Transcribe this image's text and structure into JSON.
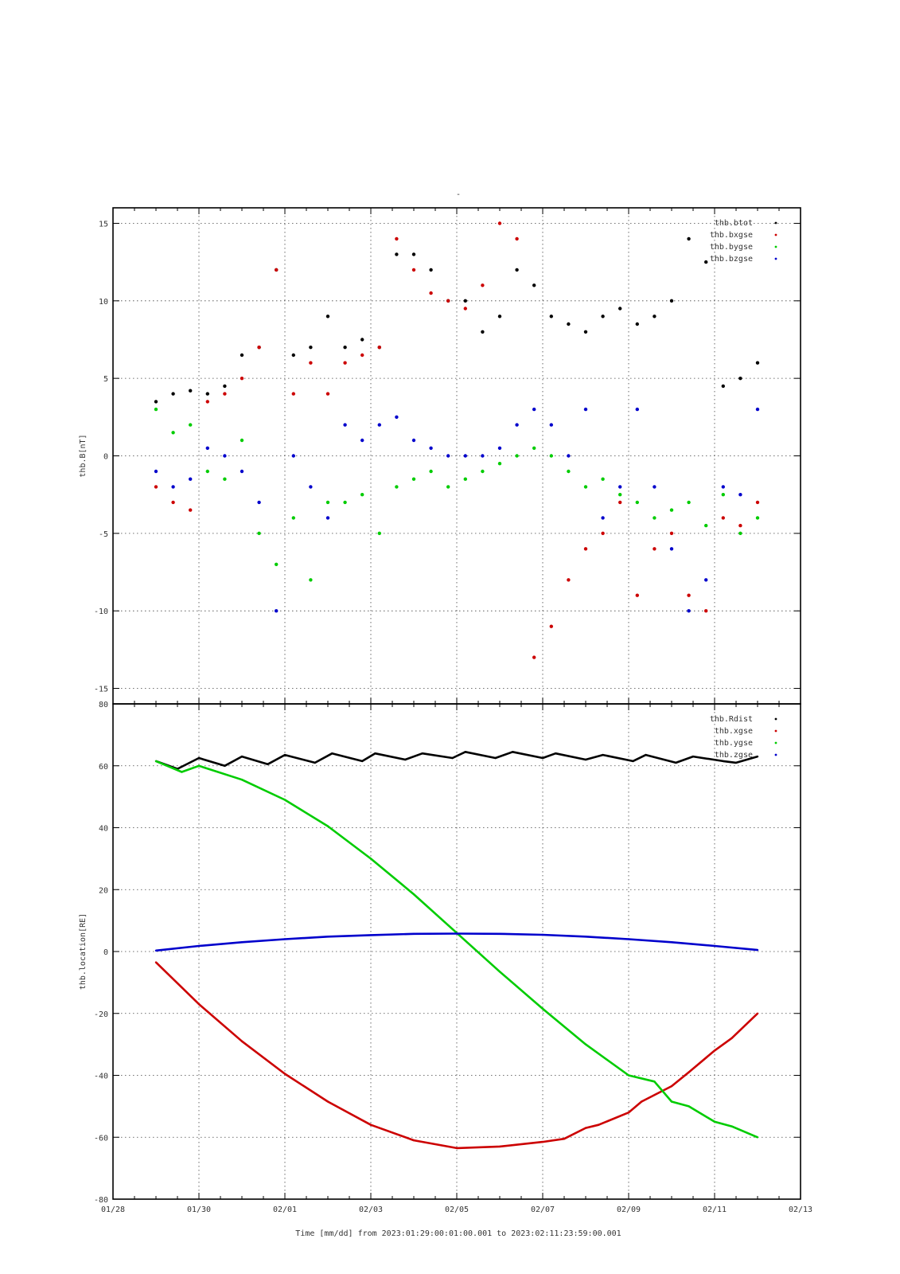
{
  "page_title": "-",
  "x_axis": {
    "label": "Time [mm/dd]  from 2023:01:29:00:01:00.001  to  2023:02:11:23:59:00.001",
    "tick_labels": [
      "01/28",
      "01/30",
      "02/01",
      "02/03",
      "02/05",
      "02/07",
      "02/09",
      "02/11",
      "02/13"
    ]
  },
  "chart_data": [
    {
      "type": "scatter",
      "title": "",
      "xlabel": "",
      "ylabel": "thb.B[nT]",
      "xlim_days_from_0128": [
        0,
        16
      ],
      "ylim": [
        -16,
        16
      ],
      "yticks": [
        -15,
        -10,
        -5,
        0,
        5,
        10,
        15
      ],
      "grid": true,
      "legend_position": "top-right",
      "x_unit": "days since 01/28",
      "series": [
        {
          "name": "thb.btot",
          "color": "#000000",
          "x": [
            1.0,
            1.4,
            1.8,
            2.2,
            2.6,
            3.0,
            3.4,
            3.8,
            4.2,
            4.6,
            5.0,
            5.4,
            5.8,
            6.2,
            6.6,
            7.0,
            7.4,
            7.8,
            8.2,
            8.6,
            9.0,
            9.4,
            9.8,
            10.2,
            10.6,
            11.0,
            11.4,
            11.8,
            12.2,
            12.6,
            13.0,
            13.4,
            13.8,
            14.2,
            14.6,
            15.0
          ],
          "y": [
            3.5,
            4.0,
            4.2,
            4.0,
            4.5,
            6.5,
            7.0,
            12.0,
            6.5,
            7.0,
            9.0,
            7.0,
            7.5,
            7.0,
            13.0,
            13.0,
            12.0,
            10.0,
            10.0,
            8.0,
            9.0,
            12.0,
            11.0,
            9.0,
            8.5,
            8.0,
            9.0,
            9.5,
            8.5,
            9.0,
            10.0,
            14.0,
            12.5,
            4.5,
            5.0,
            6.0
          ]
        },
        {
          "name": "thb.bxgse",
          "color": "#cc0000",
          "x": [
            1.0,
            1.4,
            1.8,
            2.2,
            2.6,
            3.0,
            3.4,
            3.8,
            4.2,
            4.6,
            5.0,
            5.4,
            5.8,
            6.2,
            6.6,
            7.0,
            7.4,
            7.8,
            8.2,
            8.6,
            9.0,
            9.4,
            9.8,
            10.2,
            10.6,
            11.0,
            11.4,
            11.8,
            12.2,
            12.6,
            13.0,
            13.4,
            13.8,
            14.2,
            14.6,
            15.0
          ],
          "y": [
            -2.0,
            -3.0,
            -3.5,
            3.5,
            4.0,
            5.0,
            7.0,
            12.0,
            4.0,
            6.0,
            4.0,
            6.0,
            6.5,
            7.0,
            14.0,
            12.0,
            10.5,
            10.0,
            9.5,
            11.0,
            15.0,
            14.0,
            -13.0,
            -11.0,
            -8.0,
            -6.0,
            -5.0,
            -3.0,
            -9.0,
            -6.0,
            -5.0,
            -9.0,
            -10.0,
            -4.0,
            -4.5,
            -3.0
          ]
        },
        {
          "name": "thb.bygse",
          "color": "#00cc00",
          "x": [
            1.0,
            1.4,
            1.8,
            2.2,
            2.6,
            3.0,
            3.4,
            3.8,
            4.2,
            4.6,
            5.0,
            5.4,
            5.8,
            6.2,
            6.6,
            7.0,
            7.4,
            7.8,
            8.2,
            8.6,
            9.0,
            9.4,
            9.8,
            10.2,
            10.6,
            11.0,
            11.4,
            11.8,
            12.2,
            12.6,
            13.0,
            13.4,
            13.8,
            14.2,
            14.6,
            15.0
          ],
          "y": [
            3.0,
            1.5,
            2.0,
            -1.0,
            -1.5,
            1.0,
            -5.0,
            -7.0,
            -4.0,
            -8.0,
            -3.0,
            -3.0,
            -2.5,
            -5.0,
            -2.0,
            -1.5,
            -1.0,
            -2.0,
            -1.5,
            -1.0,
            -0.5,
            0.0,
            0.5,
            0.0,
            -1.0,
            -2.0,
            -1.5,
            -2.5,
            -3.0,
            -4.0,
            -3.5,
            -3.0,
            -4.5,
            -2.5,
            -5.0,
            -4.0
          ]
        },
        {
          "name": "thb.bzgse",
          "color": "#0000cc",
          "x": [
            1.0,
            1.4,
            1.8,
            2.2,
            2.6,
            3.0,
            3.4,
            3.8,
            4.2,
            4.6,
            5.0,
            5.4,
            5.8,
            6.2,
            6.6,
            7.0,
            7.4,
            7.8,
            8.2,
            8.6,
            9.0,
            9.4,
            9.8,
            10.2,
            10.6,
            11.0,
            11.4,
            11.8,
            12.2,
            12.6,
            13.0,
            13.4,
            13.8,
            14.2,
            14.6,
            15.0
          ],
          "y": [
            -1.0,
            -2.0,
            -1.5,
            0.5,
            0.0,
            -1.0,
            -3.0,
            -10.0,
            0.0,
            -2.0,
            -4.0,
            2.0,
            1.0,
            2.0,
            2.5,
            1.0,
            0.5,
            0.0,
            0.0,
            0.0,
            0.5,
            2.0,
            3.0,
            2.0,
            0.0,
            3.0,
            -4.0,
            -2.0,
            3.0,
            -2.0,
            -6.0,
            -10.0,
            -8.0,
            -2.0,
            -2.5,
            3.0
          ]
        }
      ]
    },
    {
      "type": "line",
      "title": "",
      "xlabel": "",
      "ylabel": "thb.location[RE]",
      "xlim_days_from_0128": [
        0,
        16
      ],
      "ylim": [
        -80,
        80
      ],
      "yticks": [
        -80,
        -60,
        -40,
        -20,
        0,
        20,
        40,
        60,
        80
      ],
      "grid": true,
      "legend_position": "top-right",
      "x_unit": "days since 01/28",
      "series": [
        {
          "name": "thb.Rdist",
          "color": "#000000",
          "x": [
            1.0,
            1.5,
            2.0,
            2.6,
            3.0,
            3.6,
            4.0,
            4.7,
            5.1,
            5.8,
            6.1,
            6.8,
            7.2,
            7.9,
            8.2,
            8.9,
            9.3,
            10.0,
            10.3,
            11.0,
            11.4,
            12.1,
            12.4,
            13.1,
            13.5,
            14.2,
            14.5,
            15.0
          ],
          "y": [
            61.5,
            59.0,
            62.5,
            60.0,
            63.0,
            60.5,
            63.5,
            61.0,
            64.0,
            61.5,
            64.0,
            62.0,
            64.0,
            62.5,
            64.5,
            62.5,
            64.5,
            62.5,
            64.0,
            62.0,
            63.5,
            61.5,
            63.5,
            61.0,
            63.0,
            61.5,
            61.0,
            63.0
          ]
        },
        {
          "name": "thb.xgse",
          "color": "#cc0000",
          "x": [
            1.0,
            2.0,
            3.0,
            4.0,
            5.0,
            6.0,
            7.0,
            8.0,
            9.0,
            10.0,
            10.5,
            11.0,
            11.3,
            12.0,
            12.3,
            13.0,
            13.4,
            14.0,
            14.4,
            15.0
          ],
          "y": [
            -3.5,
            -17.0,
            -29.0,
            -39.5,
            -48.5,
            -56.0,
            -61.0,
            -63.5,
            -63.0,
            -61.5,
            -60.5,
            -57.0,
            -56.0,
            -52.0,
            -48.5,
            -43.5,
            -39.0,
            -32.0,
            -28.0,
            -20.0
          ]
        },
        {
          "name": "thb.ygse",
          "color": "#00cc00",
          "x": [
            1.0,
            1.6,
            2.0,
            3.0,
            4.0,
            5.0,
            6.0,
            7.0,
            8.0,
            9.0,
            10.0,
            11.0,
            12.0,
            12.6,
            13.0,
            13.4,
            14.0,
            14.4,
            15.0
          ],
          "y": [
            61.5,
            58.0,
            60.0,
            55.5,
            49.0,
            40.5,
            30.0,
            18.5,
            6.0,
            -6.5,
            -18.5,
            -30.0,
            -40.0,
            -42.0,
            -48.5,
            -50.0,
            -55.0,
            -56.5,
            -60.0
          ]
        },
        {
          "name": "thb.zgse",
          "color": "#0000cc",
          "x": [
            1.0,
            2.0,
            3.0,
            4.0,
            5.0,
            6.0,
            7.0,
            8.0,
            9.0,
            10.0,
            11.0,
            12.0,
            13.0,
            14.0,
            15.0
          ],
          "y": [
            0.3,
            1.8,
            3.0,
            4.0,
            4.8,
            5.3,
            5.7,
            5.8,
            5.7,
            5.4,
            4.8,
            4.0,
            3.0,
            1.8,
            0.5
          ]
        }
      ]
    }
  ]
}
